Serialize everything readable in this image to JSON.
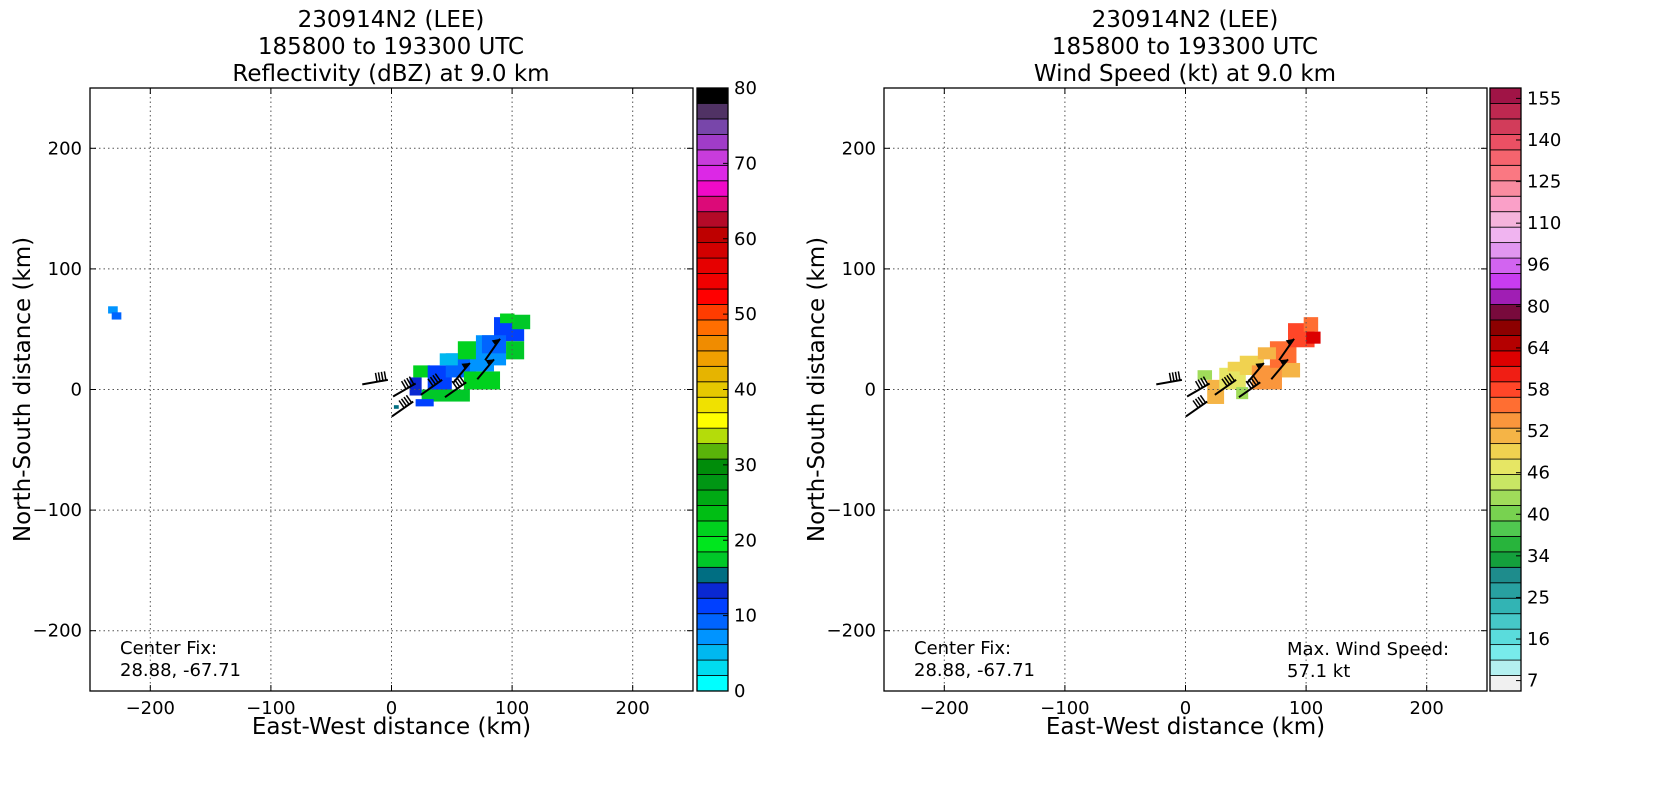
{
  "chart_data": [
    {
      "type": "heatmap",
      "title": [
        "230914N2 (LEE)",
        "185800 to 193300 UTC",
        "Reflectivity (dBZ) at 9.0 km"
      ],
      "xlabel": "East-West distance (km)",
      "ylabel": "North-South distance (km)",
      "xlim": [
        -250,
        250
      ],
      "ylim": [
        -250,
        250
      ],
      "xticks": [
        -200,
        -100,
        0,
        100,
        200
      ],
      "yticks": [
        -200,
        -100,
        0,
        100,
        200
      ],
      "xtick_labels": [
        "−200",
        "−100",
        "0",
        "100",
        "200"
      ],
      "ytick_labels": [
        "−200",
        "−100",
        "0",
        "100",
        "200"
      ],
      "grid": true,
      "annotation_left": [
        "Center Fix:",
        "28.88, -67.71"
      ],
      "colorbar": {
        "range": [
          0,
          80
        ],
        "tick_values": [
          0,
          10,
          20,
          30,
          40,
          50,
          60,
          70,
          80
        ],
        "tick_labels": [
          "0",
          "10",
          "20",
          "30",
          "40",
          "50",
          "60",
          "70",
          "80"
        ],
        "colors": [
          "#00ffff",
          "#00dcf0",
          "#00b8f0",
          "#0094ff",
          "#0064ff",
          "#0040ff",
          "#0a28d2",
          "#006e82",
          "#00c828",
          "#00e61e",
          "#00d21e",
          "#00be14",
          "#00aa14",
          "#009614",
          "#008c0a",
          "#5ab40a",
          "#b4dc0a",
          "#ffff00",
          "#f0e100",
          "#e6c800",
          "#e6b400",
          "#f0a000",
          "#f08c00",
          "#ff6e00",
          "#ff3c00",
          "#ff0000",
          "#f00000",
          "#e60000",
          "#d20000",
          "#be0000",
          "#b40a28",
          "#dc0a78",
          "#f00ac8",
          "#dc28e6",
          "#c83cdc",
          "#a03cc8",
          "#7846aa",
          "#503264",
          "#000000"
        ]
      },
      "cells": [
        {
          "x": -235,
          "y": 63,
          "w": 8,
          "h": 6,
          "c": "#0094ff"
        },
        {
          "x": -232,
          "y": 58,
          "w": 8,
          "h": 6,
          "c": "#0064ff"
        },
        {
          "x": 2,
          "y": -16,
          "w": 4,
          "h": 3,
          "c": "#006e82"
        },
        {
          "x": 18,
          "y": 10,
          "w": 14,
          "h": 10,
          "c": "#00d21e"
        },
        {
          "x": 30,
          "y": 0,
          "w": 20,
          "h": 20,
          "c": "#0040ff"
        },
        {
          "x": 45,
          "y": 10,
          "w": 25,
          "h": 20,
          "c": "#0064ff"
        },
        {
          "x": 55,
          "y": 25,
          "w": 20,
          "h": 15,
          "c": "#00d21e"
        },
        {
          "x": 70,
          "y": 20,
          "w": 25,
          "h": 25,
          "c": "#0094ff"
        },
        {
          "x": 85,
          "y": 40,
          "w": 25,
          "h": 20,
          "c": "#0040ff"
        },
        {
          "x": 100,
          "y": 50,
          "w": 15,
          "h": 12,
          "c": "#00c828"
        },
        {
          "x": 90,
          "y": 55,
          "w": 12,
          "h": 8,
          "c": "#00d21e"
        },
        {
          "x": 25,
          "y": -10,
          "w": 40,
          "h": 10,
          "c": "#00c828"
        },
        {
          "x": 60,
          "y": 0,
          "w": 30,
          "h": 15,
          "c": "#00d21e"
        },
        {
          "x": 15,
          "y": -5,
          "w": 10,
          "h": 15,
          "c": "#0a28d2"
        },
        {
          "x": 20,
          "y": -14,
          "w": 15,
          "h": 6,
          "c": "#0040ff"
        },
        {
          "x": 40,
          "y": 20,
          "w": 15,
          "h": 10,
          "c": "#00b8f0"
        },
        {
          "x": 75,
          "y": 30,
          "w": 20,
          "h": 15,
          "c": "#0064ff"
        },
        {
          "x": 95,
          "y": 25,
          "w": 15,
          "h": 15,
          "c": "#00c828"
        },
        {
          "x": 65,
          "y": 15,
          "w": 20,
          "h": 10,
          "c": "#0094ff"
        }
      ],
      "barbs": [
        {
          "x": -3,
          "y": 8,
          "dir": 260,
          "style": "hatched"
        },
        {
          "x": 20,
          "y": 5,
          "dir": 240,
          "style": "hatched"
        },
        {
          "x": 42,
          "y": 8,
          "dir": 235,
          "style": "hatched"
        },
        {
          "x": 18,
          "y": -10,
          "dir": 235,
          "style": "hatched"
        },
        {
          "x": 62,
          "y": 6,
          "dir": 235,
          "style": "hatched"
        },
        {
          "x": 65,
          "y": 22,
          "dir": 220,
          "style": "flag"
        },
        {
          "x": 85,
          "y": 25,
          "dir": 220,
          "style": "flag"
        },
        {
          "x": 90,
          "y": 42,
          "dir": 215,
          "style": "flag"
        }
      ]
    },
    {
      "type": "heatmap",
      "title": [
        "230914N2 (LEE)",
        "185800 to 193300 UTC",
        "Wind Speed (kt) at 9.0 km"
      ],
      "xlabel": "East-West distance (km)",
      "ylabel": "North-South distance (km)",
      "xlim": [
        -250,
        250
      ],
      "ylim": [
        -250,
        250
      ],
      "xticks": [
        -200,
        -100,
        0,
        100,
        200
      ],
      "yticks": [
        -200,
        -100,
        0,
        100,
        200
      ],
      "xtick_labels": [
        "−200",
        "−100",
        "0",
        "100",
        "200"
      ],
      "ytick_labels": [
        "−200",
        "−100",
        "0",
        "100",
        "200"
      ],
      "grid": true,
      "annotation_left": [
        "Center Fix:",
        "28.88, -67.71"
      ],
      "annotation_right": [
        "Max. Wind Speed:",
        "57.1 kt"
      ],
      "colorbar": {
        "tick_labels": [
          "7",
          "16",
          "25",
          "34",
          "40",
          "46",
          "52",
          "58",
          "64",
          "80",
          "96",
          "110",
          "125",
          "140",
          "155"
        ],
        "tick_bins": [
          0,
          2,
          4,
          6,
          8,
          10,
          12,
          14,
          16,
          18,
          20,
          22,
          24,
          26,
          28
        ],
        "colors": [
          "#f0f0f0",
          "#b4f0f0",
          "#78ebeb",
          "#5adcdc",
          "#46c8c8",
          "#32b4b4",
          "#28a0a0",
          "#1e8c8c",
          "#14a03c",
          "#28b43c",
          "#50c850",
          "#78d250",
          "#a0dc5a",
          "#c8e664",
          "#e6e664",
          "#f0d250",
          "#f5b446",
          "#fa963c",
          "#ff6e32",
          "#ff4628",
          "#f01e14",
          "#dc0000",
          "#b40000",
          "#8c0000",
          "#780a3c",
          "#a01eb4",
          "#c83cf0",
          "#d264f0",
          "#e196f0",
          "#f0b4f0",
          "#f5b4dc",
          "#faa0c8",
          "#fa8ca0",
          "#fa7882",
          "#f5646e",
          "#eb5064",
          "#d23c5a",
          "#be2850",
          "#a01446"
        ]
      },
      "cells": [
        {
          "x": 10,
          "y": 8,
          "w": 12,
          "h": 8,
          "c": "#a0dc5a"
        },
        {
          "x": 18,
          "y": -12,
          "w": 14,
          "h": 20,
          "c": "#f5b446"
        },
        {
          "x": 28,
          "y": 0,
          "w": 22,
          "h": 18,
          "c": "#e6e664"
        },
        {
          "x": 42,
          "y": -8,
          "w": 10,
          "h": 10,
          "c": "#a0dc5a"
        },
        {
          "x": 45,
          "y": 12,
          "w": 20,
          "h": 16,
          "c": "#f0d250"
        },
        {
          "x": 55,
          "y": 0,
          "w": 25,
          "h": 20,
          "c": "#fa963c"
        },
        {
          "x": 70,
          "y": 18,
          "w": 22,
          "h": 22,
          "c": "#ff6e32"
        },
        {
          "x": 85,
          "y": 35,
          "w": 22,
          "h": 20,
          "c": "#ff4628"
        },
        {
          "x": 98,
          "y": 48,
          "w": 12,
          "h": 12,
          "c": "#ff6e32"
        },
        {
          "x": 100,
          "y": 38,
          "w": 12,
          "h": 10,
          "c": "#dc0000"
        },
        {
          "x": 60,
          "y": 25,
          "w": 15,
          "h": 10,
          "c": "#f5b446"
        },
        {
          "x": 80,
          "y": 10,
          "w": 15,
          "h": 12,
          "c": "#f5b446"
        },
        {
          "x": 35,
          "y": 15,
          "w": 12,
          "h": 8,
          "c": "#f0d250"
        }
      ],
      "barbs": [
        {
          "x": -3,
          "y": 8,
          "dir": 260,
          "style": "hatched"
        },
        {
          "x": 20,
          "y": 5,
          "dir": 240,
          "style": "hatched"
        },
        {
          "x": 42,
          "y": 8,
          "dir": 235,
          "style": "hatched"
        },
        {
          "x": 18,
          "y": -10,
          "dir": 235,
          "style": "hatched"
        },
        {
          "x": 62,
          "y": 6,
          "dir": 235,
          "style": "hatched"
        },
        {
          "x": 65,
          "y": 22,
          "dir": 220,
          "style": "flag"
        },
        {
          "x": 85,
          "y": 25,
          "dir": 220,
          "style": "flag"
        },
        {
          "x": 90,
          "y": 42,
          "dir": 215,
          "style": "flag"
        }
      ]
    }
  ]
}
